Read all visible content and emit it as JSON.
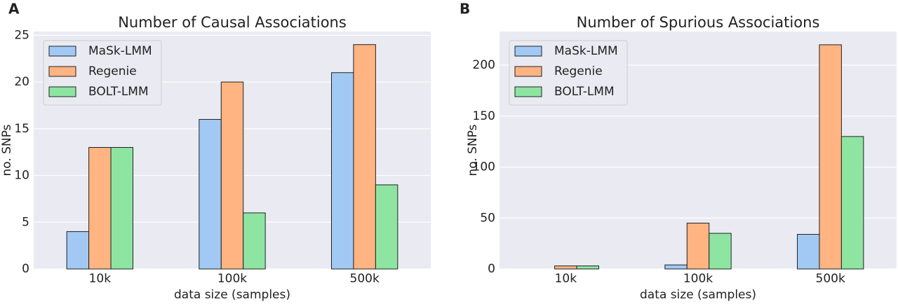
{
  "chart_data": [
    {
      "type": "bar",
      "panel_label": "A",
      "title": "Number of Causal Associations",
      "x_label": "data size (samples)",
      "y_label": "no. SNPs",
      "categories": [
        "10k",
        "100k",
        "500k"
      ],
      "series": [
        {
          "name": "MaSk-LMM",
          "color": "#a1c9f4",
          "values": [
            4,
            16,
            21
          ]
        },
        {
          "name": "Regenie",
          "color": "#ffb482",
          "values": [
            13,
            20,
            24
          ]
        },
        {
          "name": "BOLT-LMM",
          "color": "#8de5a1",
          "values": [
            13,
            6,
            9
          ]
        }
      ],
      "ylim": [
        0,
        25.4
      ],
      "yticks": [
        0,
        5,
        10,
        15,
        20,
        25
      ],
      "grid": true,
      "legend": "upper left"
    },
    {
      "type": "bar",
      "panel_label": "B",
      "title": "Number of Spurious Associations",
      "x_label": "data size (samples)",
      "y_label": "no. SNPs",
      "categories": [
        "10k",
        "100k",
        "500k"
      ],
      "series": [
        {
          "name": "MaSk-LMM",
          "color": "#a1c9f4",
          "values": [
            0,
            4,
            34
          ]
        },
        {
          "name": "Regenie",
          "color": "#ffb482",
          "values": [
            3,
            45,
            220
          ]
        },
        {
          "name": "BOLT-LMM",
          "color": "#8de5a1",
          "values": [
            3,
            35,
            130
          ]
        }
      ],
      "ylim": [
        0,
        233
      ],
      "yticks": [
        0,
        50,
        100,
        150,
        200
      ],
      "grid": true,
      "legend": "upper left"
    }
  ]
}
